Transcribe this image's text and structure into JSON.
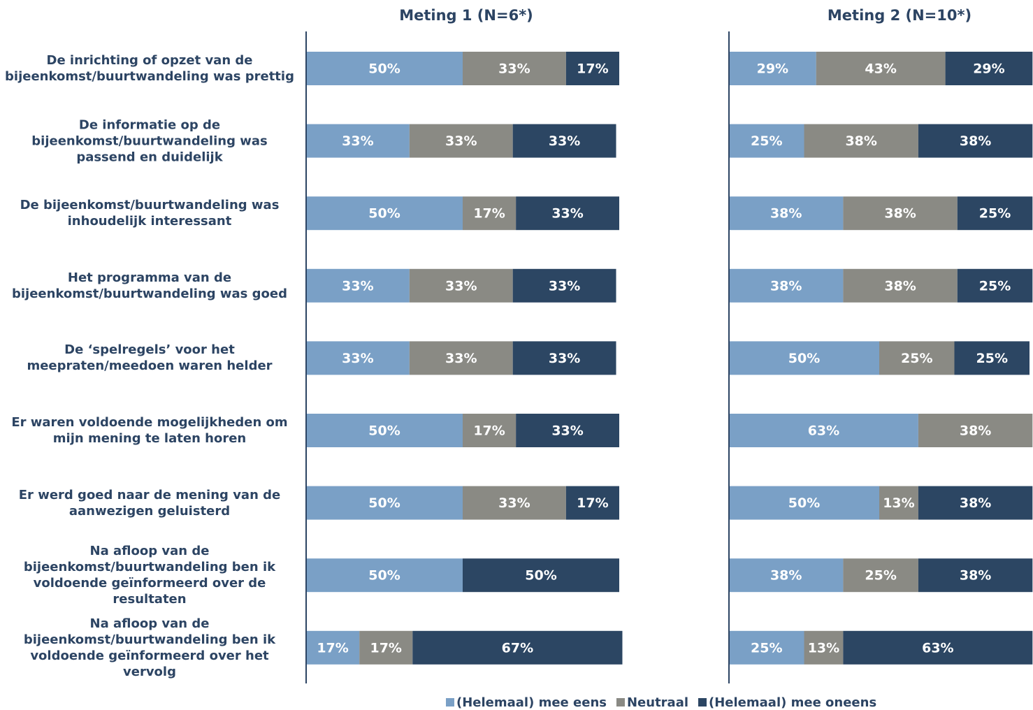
{
  "chart_data": {
    "type": "bar",
    "orientation": "horizontal",
    "stacked": true,
    "categories": [
      "De inrichting of opzet van de bijeenkomst/buurtwandeling was prettig",
      "De informatie op de bijeenkomst/buurtwandeling was passend en duidelijk",
      "De bijeenkomst/buurtwandeling was inhoudelijk interessant",
      "Het programma van de bijeenkomst/buurtwandeling was goed",
      "De ‘spelregels’ voor het meepraten/meedoen waren helder",
      "Er waren voldoende mogelijkheden om mijn mening te laten horen",
      "Er werd goed naar de mening van de aanwezigen geluisterd",
      "Na afloop van de bijeenkomst/buurtwandeling ben ik voldoende geïnformeerd over de resultaten",
      "Na afloop van de bijeenkomst/buurtwandeling ben ik voldoende geïnformeerd over het vervolg"
    ],
    "legend": [
      {
        "name": "(Helemaal) mee eens",
        "color": "#7aa0c6"
      },
      {
        "name": "Neutraal",
        "color": "#8a8a84"
      },
      {
        "name": "(Helemaal) mee oneens",
        "color": "#2c4663"
      }
    ],
    "panels": [
      {
        "title": "Meting 1 (N=6*)",
        "xlim": [
          0,
          100
        ],
        "series": [
          {
            "values": [
              50,
              33,
              50,
              33,
              33,
              50,
              50,
              50,
              17
            ],
            "value_labels": [
              "50%",
              "33%",
              "50%",
              "33%",
              "33%",
              "50%",
              "50%",
              "50%",
              "17%"
            ]
          },
          {
            "values": [
              33,
              33,
              17,
              33,
              33,
              17,
              33,
              null,
              17
            ],
            "value_labels": [
              "33%",
              "33%",
              "17%",
              "33%",
              "33%",
              "17%",
              "33%",
              null,
              "17%"
            ]
          },
          {
            "values": [
              17,
              33,
              33,
              33,
              33,
              33,
              17,
              50,
              67
            ],
            "value_labels": [
              "17%",
              "33%",
              "33%",
              "33%",
              "33%",
              "33%",
              "17%",
              "50%",
              "67%"
            ]
          }
        ]
      },
      {
        "title": "Meting 2 (N=10*)",
        "xlim": [
          0,
          100
        ],
        "series": [
          {
            "values": [
              29,
              25,
              38,
              38,
              50,
              63,
              50,
              38,
              25
            ],
            "value_labels": [
              "29%",
              "25%",
              "38%",
              "38%",
              "50%",
              "63%",
              "50%",
              "38%",
              "25%"
            ]
          },
          {
            "values": [
              43,
              38,
              38,
              38,
              25,
              38,
              13,
              25,
              13
            ],
            "value_labels": [
              "43%",
              "38%",
              "38%",
              "38%",
              "25%",
              "38%",
              "13%",
              "25%",
              "13%"
            ]
          },
          {
            "values": [
              29,
              38,
              25,
              25,
              25,
              null,
              38,
              38,
              63
            ],
            "value_labels": [
              "29%",
              "38%",
              "25%",
              "25%",
              "25%",
              null,
              "38%",
              "38%",
              "63%"
            ]
          }
        ]
      }
    ]
  }
}
